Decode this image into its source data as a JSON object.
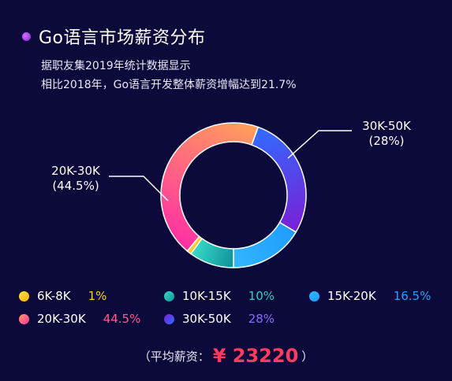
{
  "title": "Go语言市场薪资分布",
  "subtitle_lines": [
    "据职友集2019年统计数据显示",
    "相比2018年，Go语言开发整体薪资增幅达到21.7%"
  ],
  "chart_data": {
    "type": "pie",
    "variant": "donut",
    "categories": [
      "6K-8K",
      "10K-15K",
      "15K-20K",
      "20K-30K",
      "30K-50K"
    ],
    "values": [
      1,
      10,
      16.5,
      44.5,
      28
    ],
    "value_labels": [
      "1%",
      "10%",
      "16.5%",
      "44.5%",
      "28%"
    ],
    "colors": [
      "#ffcc1f",
      "#2fd1c1",
      "#2a9dff",
      "#ff5a8a",
      "#5a3bff"
    ],
    "gradients": {
      "6K-8K": [
        "#ffb300",
        "#ffe04a"
      ],
      "10K-15K": [
        "#0f8f9a",
        "#38dcc8"
      ],
      "15K-20K": [
        "#1f9cff",
        "#34b6ff"
      ],
      "20K-30K": [
        "#ff2fa6",
        "#ffa05a"
      ],
      "30K-50K": [
        "#2f6dff",
        "#7a1fd6"
      ]
    },
    "callouts": [
      {
        "label": "30K-50K",
        "value": "(28%)"
      },
      {
        "label": "20K-30K",
        "value": "(44.5%)"
      }
    ],
    "legend_order": [
      "6K-8K",
      "10K-15K",
      "15K-20K",
      "20K-30K",
      "30K-50K"
    ],
    "legend_placement": "bottom"
  },
  "legend_pct_colors": [
    "#ffcc1f",
    "#2fd1c1",
    "#2a9dff",
    "#ff5a8a",
    "#8a6dff"
  ],
  "footer": {
    "prefix": "（平均薪资：",
    "currency": "¥",
    "value": "23220",
    "suffix": "）"
  }
}
